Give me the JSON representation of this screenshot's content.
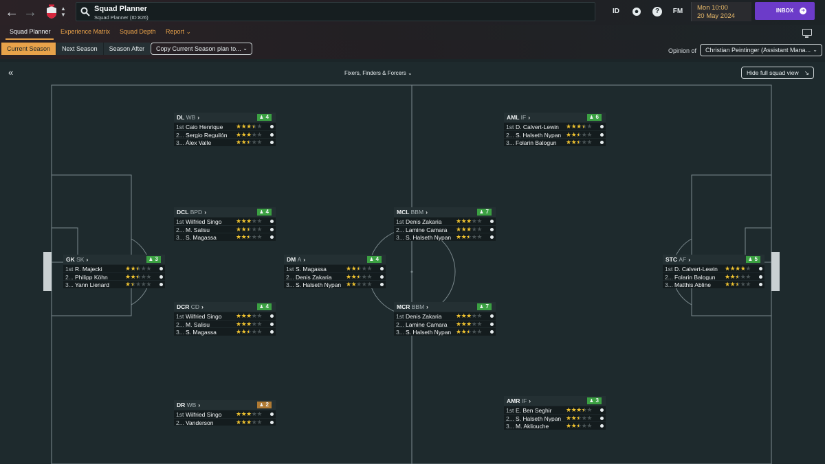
{
  "window": {
    "search_title": "Squad Planner",
    "search_subtitle": "Squad Planner (ID:826)",
    "id_label": "ID",
    "fm_label": "FM",
    "help_label": "?",
    "date_line1": "Mon 10:00",
    "date_line2": "20 May 2024",
    "inbox_label": "INBOX"
  },
  "tabs": [
    {
      "label": "Squad Planner",
      "active": true
    },
    {
      "label": "Experience Matrix",
      "active": false
    },
    {
      "label": "Squad Depth",
      "active": false
    },
    {
      "label": "Report ⌄",
      "active": false
    }
  ],
  "seasons": [
    {
      "label": "Current Season",
      "active": true
    },
    {
      "label": "Next Season",
      "active": false
    },
    {
      "label": "Season After",
      "active": false
    }
  ],
  "copy_plan_label": "Copy Current Season plan to...",
  "opinion": {
    "label": "Opinion of",
    "value": "Christian Peintinger (Assistant Mana..."
  },
  "filter_label": "Fixers, Finders & Forcers",
  "hide_view_label": "Hide full squad view",
  "colors": {
    "accent": "#e8a24a",
    "inbox": "#6c3bc9",
    "badge_green": "#3ba042",
    "badge_amber": "#b07a33",
    "star": "#f0c330"
  },
  "positions": [
    {
      "code": "GK",
      "role": "SK",
      "count": "3",
      "badge": "green",
      "players": [
        {
          "rank": "1st",
          "name": "R. Majecki",
          "stars": 2.5
        },
        {
          "rank": "2...",
          "name": "Philipp Köhn",
          "stars": 2.5
        },
        {
          "rank": "3...",
          "name": "Yann Lienard",
          "stars": 1.5
        }
      ]
    },
    {
      "code": "DL",
      "role": "WB",
      "count": "4",
      "badge": "green",
      "players": [
        {
          "rank": "1st",
          "name": "Caio Henrique",
          "stars": 3.5
        },
        {
          "rank": "2...",
          "name": "Sergio Reguilón",
          "stars": 3
        },
        {
          "rank": "3...",
          "name": "Álex Valle",
          "stars": 2.5
        }
      ]
    },
    {
      "code": "DCL",
      "role": "BPD",
      "count": "4",
      "badge": "green",
      "players": [
        {
          "rank": "1st",
          "name": "Wilfried Singo",
          "stars": 3
        },
        {
          "rank": "2...",
          "name": "M. Salisu",
          "stars": 2.5
        },
        {
          "rank": "3...",
          "name": "S. Magassa",
          "stars": 2.5
        }
      ]
    },
    {
      "code": "DCR",
      "role": "CD",
      "count": "4",
      "badge": "green",
      "players": [
        {
          "rank": "1st",
          "name": "Wilfried Singo",
          "stars": 3
        },
        {
          "rank": "2...",
          "name": "M. Salisu",
          "stars": 3
        },
        {
          "rank": "3...",
          "name": "S. Magassa",
          "stars": 2.5
        }
      ]
    },
    {
      "code": "DR",
      "role": "WB",
      "count": "2",
      "badge": "amber",
      "players": [
        {
          "rank": "1st",
          "name": "Wilfried Singo",
          "stars": 3
        },
        {
          "rank": "2...",
          "name": "Vanderson",
          "stars": 3
        }
      ]
    },
    {
      "code": "DM",
      "role": "A",
      "count": "4",
      "badge": "green",
      "players": [
        {
          "rank": "1st",
          "name": "S. Magassa",
          "stars": 2.5
        },
        {
          "rank": "2...",
          "name": "Denis Zakaria",
          "stars": 2.5
        },
        {
          "rank": "3...",
          "name": "S. Halseth Nypan",
          "stars": 2
        }
      ]
    },
    {
      "code": "MCL",
      "role": "BBM",
      "count": "7",
      "badge": "green",
      "players": [
        {
          "rank": "1st",
          "name": "Denis Zakaria",
          "stars": 3
        },
        {
          "rank": "2...",
          "name": "Lamine Camara",
          "stars": 3
        },
        {
          "rank": "3...",
          "name": "S. Halseth Nypan",
          "stars": 2.5
        }
      ]
    },
    {
      "code": "MCR",
      "role": "BBM",
      "count": "7",
      "badge": "green",
      "players": [
        {
          "rank": "1st",
          "name": "Denis Zakaria",
          "stars": 3
        },
        {
          "rank": "2...",
          "name": "Lamine Camara",
          "stars": 3
        },
        {
          "rank": "3...",
          "name": "S. Halseth Nypan",
          "stars": 2.5
        }
      ]
    },
    {
      "code": "AML",
      "role": "IF",
      "count": "6",
      "badge": "green",
      "players": [
        {
          "rank": "1st",
          "name": "D. Calvert-Lewin",
          "stars": 3.5
        },
        {
          "rank": "2...",
          "name": "S. Halseth Nypan",
          "stars": 2.5
        },
        {
          "rank": "3...",
          "name": "Folarin Balogun",
          "stars": 2.5
        }
      ]
    },
    {
      "code": "AMR",
      "role": "IF",
      "count": "3",
      "badge": "green",
      "players": [
        {
          "rank": "1st",
          "name": "E. Ben Seghir",
          "stars": 3.5
        },
        {
          "rank": "2...",
          "name": "S. Halseth Nypan",
          "stars": 2.5
        },
        {
          "rank": "3...",
          "name": "M. Akliouche",
          "stars": 2.5
        }
      ]
    },
    {
      "code": "STC",
      "role": "AF",
      "count": "5",
      "badge": "green",
      "players": [
        {
          "rank": "1st",
          "name": "D. Calvert-Lewin",
          "stars": 4
        },
        {
          "rank": "2...",
          "name": "Folarin Balogun",
          "stars": 2.5
        },
        {
          "rank": "3...",
          "name": "Matthis Abline",
          "stars": 2.5
        }
      ]
    }
  ]
}
